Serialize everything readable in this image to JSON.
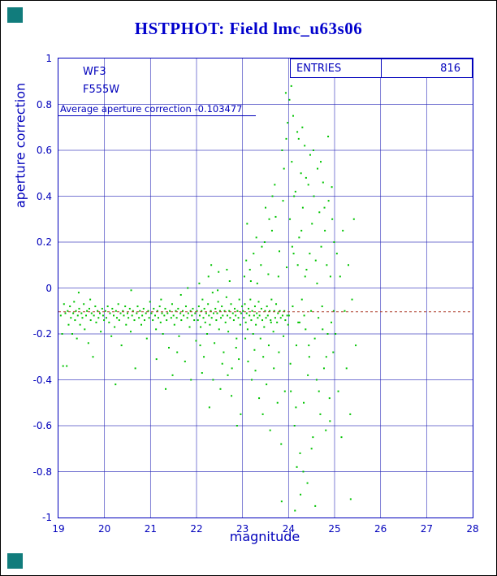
{
  "title": "HSTPHOT: Field lmc_u63s06",
  "stats": {
    "label": "ENTRIES",
    "value": "816"
  },
  "annotations": {
    "camera": "WF3",
    "filter": "F555W",
    "average_line": "Average aperture correction -0.103477"
  },
  "colors": {
    "title": "#0000cc",
    "axis": "#0000bb",
    "grid": "#2a2ab8",
    "marker": "#00c400",
    "reference_line": "#b04030",
    "corner_square": "#117c7c"
  },
  "chart_data": {
    "type": "scatter",
    "title": "HSTPHOT: Field lmc_u63s06",
    "xlabel": "magnitude",
    "ylabel": "aperture correction",
    "xlim": [
      19,
      28
    ],
    "ylim": [
      -1,
      1
    ],
    "x_ticks": [
      "19",
      "20",
      "21",
      "22",
      "23",
      "24",
      "25",
      "26",
      "27",
      "28"
    ],
    "y_ticks": [
      "1",
      "0.8",
      "0.6",
      "0.4",
      "0.2",
      "0",
      "-0.2",
      "-0.4",
      "-0.6",
      "-0.8",
      "-1"
    ],
    "grid": true,
    "entries": 816,
    "average_aperture_correction": -0.103477,
    "reference_line_y": -0.103477,
    "points": [
      [
        19.05,
        -0.12
      ],
      [
        19.08,
        -0.2
      ],
      [
        19.1,
        -0.34
      ],
      [
        19.12,
        -0.07
      ],
      [
        19.15,
        -0.11
      ],
      [
        19.18,
        -0.34
      ],
      [
        19.2,
        -0.1
      ],
      [
        19.22,
        -0.16
      ],
      [
        19.25,
        -0.08
      ],
      [
        19.27,
        -0.13
      ],
      [
        19.3,
        -0.2
      ],
      [
        19.32,
        -0.11
      ],
      [
        19.34,
        -0.06
      ],
      [
        19.36,
        -0.14
      ],
      [
        19.38,
        -0.1
      ],
      [
        19.4,
        -0.22
      ],
      [
        19.42,
        -0.12
      ],
      [
        19.44,
        -0.02
      ],
      [
        19.45,
        -0.09
      ],
      [
        19.47,
        -0.16
      ],
      [
        19.5,
        -0.11
      ],
      [
        19.52,
        -0.13
      ],
      [
        19.55,
        -0.07
      ],
      [
        19.57,
        -0.18
      ],
      [
        19.6,
        -0.12
      ],
      [
        19.62,
        -0.1
      ],
      [
        19.65,
        -0.24
      ],
      [
        19.67,
        -0.09
      ],
      [
        19.69,
        -0.05
      ],
      [
        19.7,
        -0.14
      ],
      [
        19.72,
        -0.11
      ],
      [
        19.75,
        -0.3
      ],
      [
        19.77,
        -0.12
      ],
      [
        19.8,
        -0.08
      ],
      [
        19.82,
        -0.15
      ],
      [
        19.85,
        -0.1
      ],
      [
        19.87,
        -0.13
      ],
      [
        19.9,
        -0.11
      ],
      [
        19.92,
        -0.19
      ],
      [
        19.95,
        -0.09
      ],
      [
        19.97,
        -0.12
      ],
      [
        19.99,
        -0.14
      ],
      [
        20.02,
        -0.1
      ],
      [
        20.04,
        -0.13
      ],
      [
        20.07,
        -0.08
      ],
      [
        20.1,
        -0.15
      ],
      [
        20.12,
        -0.11
      ],
      [
        20.15,
        -0.21
      ],
      [
        20.17,
        -0.09
      ],
      [
        20.2,
        -0.12
      ],
      [
        20.22,
        -0.17
      ],
      [
        20.24,
        -0.42
      ],
      [
        20.25,
        -0.1
      ],
      [
        20.27,
        -0.13
      ],
      [
        20.3,
        -0.07
      ],
      [
        20.32,
        -0.14
      ],
      [
        20.35,
        -0.11
      ],
      [
        20.37,
        -0.25
      ],
      [
        20.4,
        -0.1
      ],
      [
        20.42,
        -0.12
      ],
      [
        20.45,
        -0.08
      ],
      [
        20.47,
        -0.16
      ],
      [
        20.5,
        -0.11
      ],
      [
        20.52,
        -0.13
      ],
      [
        20.55,
        -0.09
      ],
      [
        20.57,
        -0.19
      ],
      [
        20.58,
        -0.01
      ],
      [
        20.6,
        -0.12
      ],
      [
        20.62,
        -0.1
      ],
      [
        20.65,
        -0.14
      ],
      [
        20.67,
        -0.35
      ],
      [
        20.7,
        -0.11
      ],
      [
        20.72,
        -0.08
      ],
      [
        20.75,
        -0.13
      ],
      [
        20.77,
        -0.1
      ],
      [
        20.8,
        -0.16
      ],
      [
        20.82,
        -0.12
      ],
      [
        20.85,
        -0.09
      ],
      [
        20.87,
        -0.14
      ],
      [
        20.9,
        -0.11
      ],
      [
        20.92,
        -0.22
      ],
      [
        20.95,
        -0.1
      ],
      [
        20.97,
        -0.13
      ],
      [
        20.99,
        -0.06
      ],
      [
        21.02,
        -0.11
      ],
      [
        21.05,
        -0.14
      ],
      [
        21.07,
        -0.09
      ],
      [
        21.1,
        -0.12
      ],
      [
        21.12,
        -0.18
      ],
      [
        21.13,
        -0.31
      ],
      [
        21.15,
        -0.1
      ],
      [
        21.17,
        -0.13
      ],
      [
        21.2,
        -0.08
      ],
      [
        21.22,
        -0.15
      ],
      [
        21.23,
        -0.05
      ],
      [
        21.25,
        -0.11
      ],
      [
        21.27,
        -0.2
      ],
      [
        21.3,
        -0.12
      ],
      [
        21.32,
        -0.09
      ],
      [
        21.33,
        -0.44
      ],
      [
        21.35,
        -0.14
      ],
      [
        21.37,
        -0.11
      ],
      [
        21.4,
        -0.26
      ],
      [
        21.42,
        -0.1
      ],
      [
        21.45,
        -0.13
      ],
      [
        21.47,
        -0.07
      ],
      [
        21.48,
        -0.38
      ],
      [
        21.5,
        -0.12
      ],
      [
        21.52,
        -0.16
      ],
      [
        21.55,
        -0.1
      ],
      [
        21.57,
        -0.13
      ],
      [
        21.58,
        -0.28
      ],
      [
        21.6,
        -0.09
      ],
      [
        21.62,
        -0.21
      ],
      [
        21.65,
        -0.11
      ],
      [
        21.66,
        -0.03
      ],
      [
        21.67,
        -0.14
      ],
      [
        21.7,
        -0.1
      ],
      [
        21.72,
        -0.12
      ],
      [
        21.75,
        -0.32
      ],
      [
        21.77,
        -0.08
      ],
      [
        21.8,
        -0.13
      ],
      [
        21.81,
        0.0
      ],
      [
        21.82,
        -0.11
      ],
      [
        21.85,
        -0.17
      ],
      [
        21.87,
        -0.1
      ],
      [
        21.88,
        -0.4
      ],
      [
        21.9,
        -0.12
      ],
      [
        21.92,
        -0.09
      ],
      [
        21.95,
        -0.14
      ],
      [
        21.97,
        -0.11
      ],
      [
        21.99,
        -0.23
      ],
      [
        22.01,
        -0.1
      ],
      [
        22.03,
        -0.14
      ],
      [
        22.05,
        -0.08
      ],
      [
        22.06,
        0.02
      ],
      [
        22.07,
        -0.12
      ],
      [
        22.08,
        -0.25
      ],
      [
        22.09,
        -0.17
      ],
      [
        22.11,
        -0.1
      ],
      [
        22.12,
        -0.37
      ],
      [
        22.13,
        -0.05
      ],
      [
        22.15,
        -0.13
      ],
      [
        22.16,
        -0.3
      ],
      [
        22.17,
        -0.09
      ],
      [
        22.19,
        -0.15
      ],
      [
        22.21,
        -0.11
      ],
      [
        22.23,
        -0.2
      ],
      [
        22.25,
        -0.07
      ],
      [
        22.26,
        0.05
      ],
      [
        22.27,
        -0.12
      ],
      [
        22.28,
        -0.52
      ],
      [
        22.29,
        -0.16
      ],
      [
        22.31,
        -0.1
      ],
      [
        22.32,
        0.1
      ],
      [
        22.33,
        -0.13
      ],
      [
        22.35,
        -0.02
      ],
      [
        22.36,
        -0.4
      ],
      [
        22.37,
        -0.11
      ],
      [
        22.39,
        -0.24
      ],
      [
        22.41,
        -0.09
      ],
      [
        22.43,
        -0.14
      ],
      [
        22.45,
        -0.11
      ],
      [
        22.46,
        -0.01
      ],
      [
        22.47,
        -0.06
      ],
      [
        22.48,
        0.07
      ],
      [
        22.49,
        -0.18
      ],
      [
        22.51,
        -0.1
      ],
      [
        22.52,
        -0.44
      ],
      [
        22.53,
        -0.13
      ],
      [
        22.55,
        -0.08
      ],
      [
        22.56,
        -0.33
      ],
      [
        22.57,
        -0.12
      ],
      [
        22.59,
        -0.28
      ],
      [
        22.61,
        -0.1
      ],
      [
        22.63,
        -0.15
      ],
      [
        22.65,
        -0.04
      ],
      [
        22.66,
        0.08
      ],
      [
        22.67,
        -0.12
      ],
      [
        22.68,
        -0.38
      ],
      [
        22.69,
        -0.19
      ],
      [
        22.71,
        -0.1
      ],
      [
        22.72,
        0.03
      ],
      [
        22.73,
        -0.13
      ],
      [
        22.75,
        -0.07
      ],
      [
        22.76,
        -0.47
      ],
      [
        22.77,
        -0.35
      ],
      [
        22.79,
        -0.11
      ],
      [
        22.81,
        -0.14
      ],
      [
        22.83,
        -0.09
      ],
      [
        22.85,
        -0.12
      ],
      [
        22.86,
        -0.26
      ],
      [
        22.87,
        -0.22
      ],
      [
        22.88,
        -0.6
      ],
      [
        22.89,
        -0.1
      ],
      [
        22.91,
        -0.13
      ],
      [
        22.92,
        -0.31
      ],
      [
        22.93,
        -0.05
      ],
      [
        22.95,
        -0.16
      ],
      [
        22.96,
        -0.55
      ],
      [
        22.97,
        -0.11
      ],
      [
        22.99,
        -0.08
      ],
      [
        23.01,
        -0.1
      ],
      [
        23.03,
        -0.13
      ],
      [
        23.04,
        0.05
      ],
      [
        23.05,
        -0.07
      ],
      [
        23.06,
        -0.22
      ],
      [
        23.07,
        -0.15
      ],
      [
        23.08,
        0.12
      ],
      [
        23.09,
        -0.11
      ],
      [
        23.1,
        0.28
      ],
      [
        23.11,
        -0.18
      ],
      [
        23.12,
        -0.32
      ],
      [
        23.13,
        -0.09
      ],
      [
        23.15,
        -0.12
      ],
      [
        23.16,
        0.08
      ],
      [
        23.17,
        -0.05
      ],
      [
        23.18,
        0.03
      ],
      [
        23.19,
        -0.14
      ],
      [
        23.2,
        -0.4
      ],
      [
        23.21,
        -0.1
      ],
      [
        23.23,
        -0.2
      ],
      [
        23.24,
        0.15
      ],
      [
        23.25,
        -0.12
      ],
      [
        23.26,
        -0.27
      ],
      [
        23.27,
        -0.08
      ],
      [
        23.28,
        -0.36
      ],
      [
        23.29,
        -0.16
      ],
      [
        23.3,
        0.22
      ],
      [
        23.31,
        -0.11
      ],
      [
        23.32,
        0.02
      ],
      [
        23.33,
        -0.13
      ],
      [
        23.35,
        -0.06
      ],
      [
        23.36,
        -0.48
      ],
      [
        23.37,
        -0.12
      ],
      [
        23.39,
        -0.22
      ],
      [
        23.4,
        0.1
      ],
      [
        23.41,
        -0.09
      ],
      [
        23.42,
        0.18
      ],
      [
        23.43,
        -0.14
      ],
      [
        23.44,
        -0.55
      ],
      [
        23.45,
        -0.3
      ],
      [
        23.47,
        -0.17
      ],
      [
        23.48,
        0.2
      ],
      [
        23.49,
        -0.1
      ],
      [
        23.5,
        0.35
      ],
      [
        23.51,
        -0.13
      ],
      [
        23.52,
        -0.42
      ],
      [
        23.53,
        -0.08
      ],
      [
        23.55,
        -0.12
      ],
      [
        23.56,
        0.06
      ],
      [
        23.57,
        -0.25
      ],
      [
        23.58,
        0.3
      ],
      [
        23.59,
        -0.1
      ],
      [
        23.6,
        -0.62
      ],
      [
        23.61,
        -0.14
      ],
      [
        23.62,
        -0.15
      ],
      [
        23.63,
        -0.05
      ],
      [
        23.64,
        0.25
      ],
      [
        23.65,
        0.4
      ],
      [
        23.67,
        -0.19
      ],
      [
        23.68,
        -0.35
      ],
      [
        23.69,
        -0.1
      ],
      [
        23.7,
        0.45
      ],
      [
        23.71,
        -0.13
      ],
      [
        23.72,
        0.31
      ],
      [
        23.73,
        -0.07
      ],
      [
        23.75,
        -0.15
      ],
      [
        23.76,
        -0.5
      ],
      [
        23.77,
        -0.11
      ],
      [
        23.78,
        0.05
      ],
      [
        23.79,
        -0.28
      ],
      [
        23.8,
        0.16
      ],
      [
        23.81,
        -0.1
      ],
      [
        23.83,
        -0.13
      ],
      [
        23.84,
        -0.68
      ],
      [
        23.85,
        -0.93
      ],
      [
        23.86,
        0.6
      ],
      [
        23.87,
        -0.12
      ],
      [
        23.88,
        0.38
      ],
      [
        23.89,
        -0.21
      ],
      [
        23.9,
        0.52
      ],
      [
        23.91,
        -0.1
      ],
      [
        23.92,
        -0.45
      ],
      [
        23.93,
        -0.14
      ],
      [
        23.94,
        0.85
      ],
      [
        23.95,
        0.65
      ],
      [
        23.96,
        0.09
      ],
      [
        23.97,
        -0.12
      ],
      [
        23.98,
        0.72
      ],
      [
        23.99,
        -0.16
      ],
      [
        24.01,
        -0.12
      ],
      [
        24.02,
        0.82
      ],
      [
        24.03,
        0.3
      ],
      [
        24.04,
        -0.33
      ],
      [
        24.05,
        -0.45
      ],
      [
        24.06,
        0.88
      ],
      [
        24.07,
        0.55
      ],
      [
        24.08,
        0.18
      ],
      [
        24.09,
        -0.08
      ],
      [
        24.1,
        0.75
      ],
      [
        24.11,
        0.15
      ],
      [
        24.12,
        0.4
      ],
      [
        24.13,
        -0.6
      ],
      [
        24.14,
        -0.97
      ],
      [
        24.15,
        0.42
      ],
      [
        24.16,
        -0.52
      ],
      [
        24.17,
        -0.25
      ],
      [
        24.18,
        -0.78
      ],
      [
        24.19,
        0.68
      ],
      [
        24.2,
        0.1
      ],
      [
        24.21,
        -0.15
      ],
      [
        24.22,
        0.65
      ],
      [
        24.23,
        0.22
      ],
      [
        24.24,
        -0.15
      ],
      [
        24.25,
        -0.72
      ],
      [
        24.26,
        -0.9
      ],
      [
        24.27,
        0.5
      ],
      [
        24.28,
        0.25
      ],
      [
        24.29,
        -0.05
      ],
      [
        24.3,
        0.7
      ],
      [
        24.31,
        0.35
      ],
      [
        24.32,
        -0.8
      ],
      [
        24.33,
        -0.5
      ],
      [
        24.34,
        -0.12
      ],
      [
        24.35,
        0.62
      ],
      [
        24.36,
        0.05
      ],
      [
        24.37,
        -0.18
      ],
      [
        24.38,
        0.48
      ],
      [
        24.39,
        0.08
      ],
      [
        24.41,
        -0.85
      ],
      [
        24.42,
        -0.38
      ],
      [
        24.43,
        0.45
      ],
      [
        24.44,
        -0.25
      ],
      [
        24.45,
        -0.3
      ],
      [
        24.46,
        0.15
      ],
      [
        24.47,
        0.58
      ],
      [
        24.49,
        -0.1
      ],
      [
        24.5,
        -0.7
      ],
      [
        24.51,
        0.28
      ],
      [
        24.53,
        -0.65
      ],
      [
        24.54,
        0.6
      ],
      [
        24.55,
        0.4
      ],
      [
        24.57,
        -0.22
      ],
      [
        24.58,
        -0.95
      ],
      [
        24.59,
        0.12
      ],
      [
        24.61,
        -0.4
      ],
      [
        24.62,
        0.02
      ],
      [
        24.63,
        0.52
      ],
      [
        24.65,
        -0.13
      ],
      [
        24.66,
        -0.45
      ],
      [
        24.67,
        0.33
      ],
      [
        24.69,
        -0.55
      ],
      [
        24.7,
        0.55
      ],
      [
        24.71,
        0.18
      ],
      [
        24.73,
        -0.08
      ],
      [
        24.74,
        -0.18
      ],
      [
        24.75,
        0.46
      ],
      [
        24.77,
        -0.35
      ],
      [
        24.78,
        0.35
      ],
      [
        24.79,
        0.25
      ],
      [
        24.81,
        -0.62
      ],
      [
        24.82,
        -0.3
      ],
      [
        24.83,
        0.1
      ],
      [
        24.85,
        -0.2
      ],
      [
        24.86,
        0.66
      ],
      [
        24.87,
        0.38
      ],
      [
        24.89,
        -0.48
      ],
      [
        24.9,
        -0.58
      ],
      [
        24.91,
        0.05
      ],
      [
        24.93,
        -0.15
      ],
      [
        24.94,
        0.44
      ],
      [
        24.95,
        0.3
      ],
      [
        24.97,
        -0.28
      ],
      [
        24.98,
        -0.1
      ],
      [
        24.99,
        0.2
      ],
      [
        25.02,
        -0.2
      ],
      [
        25.05,
        0.15
      ],
      [
        25.08,
        -0.45
      ],
      [
        25.12,
        0.05
      ],
      [
        25.15,
        -0.65
      ],
      [
        25.18,
        0.25
      ],
      [
        25.22,
        -0.1
      ],
      [
        25.26,
        -0.35
      ],
      [
        25.3,
        0.1
      ],
      [
        25.34,
        -0.55
      ],
      [
        25.35,
        -0.92
      ],
      [
        25.38,
        -0.05
      ],
      [
        25.42,
        0.3
      ],
      [
        25.46,
        -0.25
      ]
    ]
  }
}
